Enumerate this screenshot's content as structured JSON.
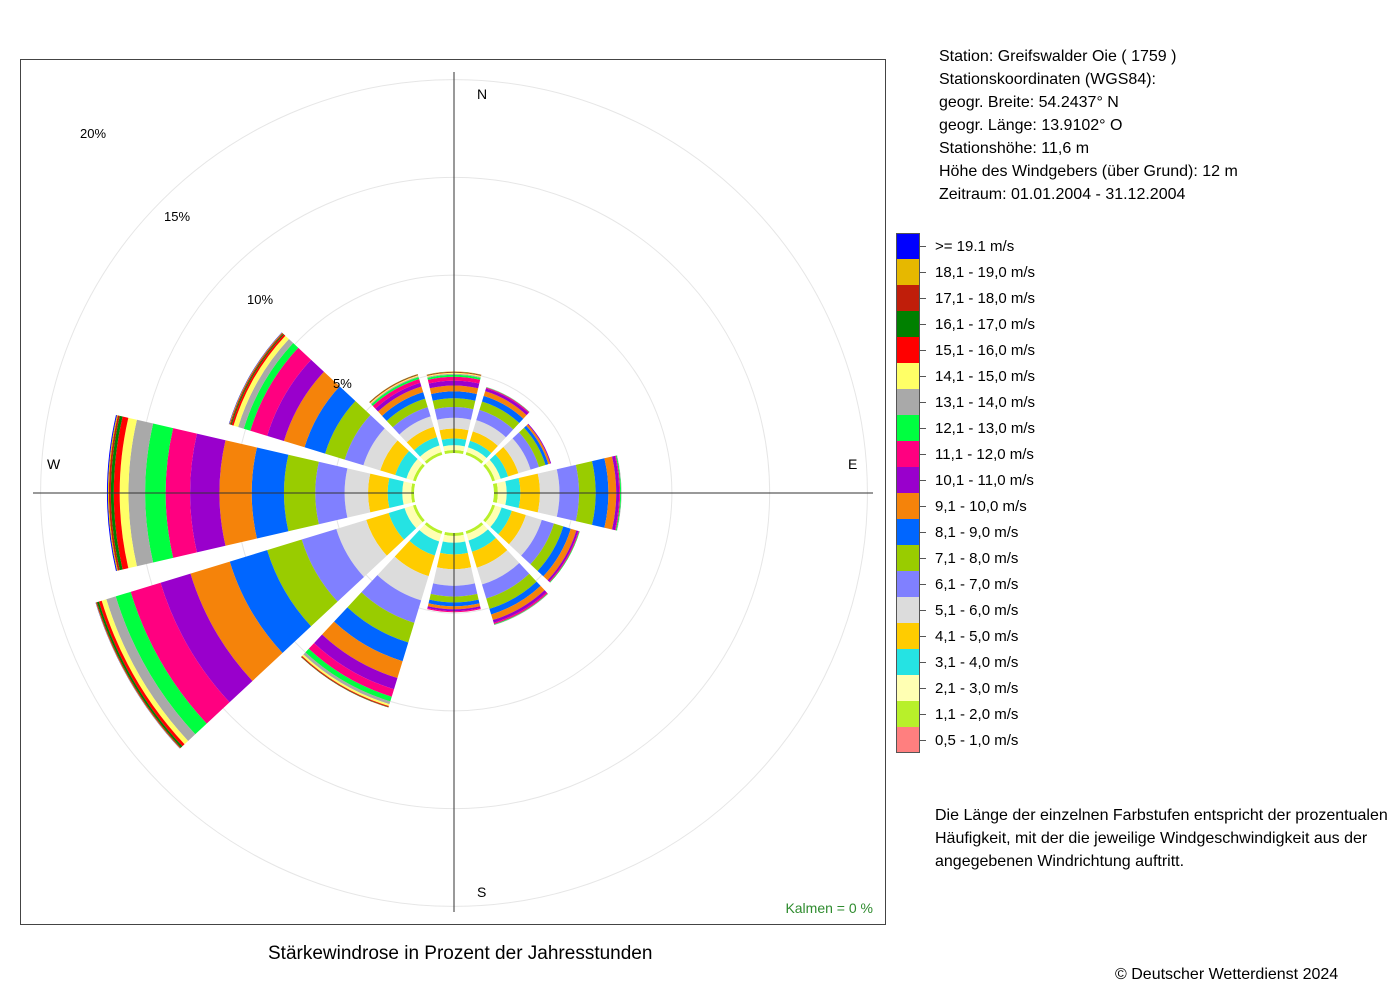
{
  "station": {
    "line1": "Station:  Greifswalder Oie  ( 1759 )",
    "line2": "Stationskoordinaten (WGS84):",
    "line3": "geogr. Breite: 54.2437° N",
    "line4": "geogr. Länge: 13.9102° O",
    "line5": "Stationshöhe: 11,6 m",
    "line6": "Höhe des Windgebers (über Grund): 12 m",
    "line7": "Zeitraum: 01.01.2004 - 31.12.2004"
  },
  "compass": {
    "n": "N",
    "e": "E",
    "s": "S",
    "w": "W"
  },
  "calm": {
    "label": "Kalmen  =  0 %"
  },
  "caption": "Stärkewindrose in Prozent der Jahresstunden",
  "description": {
    "line1": "Die Länge der einzelnen Farbstufen entspricht der prozentualen",
    "line2": "Häufigkeit, mit der die jeweilige Windgeschwindigkeit aus der",
    "line3": "angegebenen Windrichtung auftritt."
  },
  "copyright": "© Deutscher Wetterdienst  2024",
  "chart_data": {
    "type": "polar-stacked-bar",
    "title": "Stärkewindrose in Prozent der Jahresstunden",
    "ring_labels": [
      "5%",
      "10%",
      "15%",
      "20%"
    ],
    "ring_values": [
      5,
      10,
      15,
      20
    ],
    "inner_offset_percent": 0.9,
    "directions_deg": [
      0,
      30,
      60,
      90,
      120,
      150,
      180,
      210,
      240,
      270,
      300,
      330
    ],
    "classes": [
      {
        "label": "0,5 - 1,0 m/s",
        "color": "#ff7f7f"
      },
      {
        "label": "1,1 - 2,0 m/s",
        "color": "#b8f02a"
      },
      {
        "label": "2,1 - 3,0 m/s",
        "color": "#ffffb3"
      },
      {
        "label": "3,1 - 4,0 m/s",
        "color": "#25e3e3"
      },
      {
        "label": "4,1 - 5,0 m/s",
        "color": "#ffcc00"
      },
      {
        "label": "5,1 - 6,0 m/s",
        "color": "#dcdcdc"
      },
      {
        "label": "6,1 - 7,0 m/s",
        "color": "#8080ff"
      },
      {
        "label": "7,1 - 8,0 m/s",
        "color": "#99cc00"
      },
      {
        "label": "8,1 - 9,0 m/s",
        "color": "#0066ff"
      },
      {
        "label": "9,1 - 10,0 m/s",
        "color": "#f5830a"
      },
      {
        "label": "10,1 - 11,0 m/s",
        "color": "#9900cc"
      },
      {
        "label": "11,1 - 12,0 m/s",
        "color": "#ff0080"
      },
      {
        "label": "12,1 - 13,0 m/s",
        "color": "#00ff40"
      },
      {
        "label": "13,1 - 14,0 m/s",
        "color": "#a9a9a9"
      },
      {
        "label": "14,1 - 15,0 m/s",
        "color": "#ffff66"
      },
      {
        "label": "15,1 - 16,0 m/s",
        "color": "#ff0000"
      },
      {
        "label": "16,1 - 17,0 m/s",
        "color": "#008000"
      },
      {
        "label": "17,1 - 18,0 m/s",
        "color": "#c01e0a"
      },
      {
        "label": "18,1 - 19,0 m/s",
        "color": "#e6b800"
      },
      {
        "label": ">= 19.1 m/s",
        "color": "#0000ff"
      }
    ],
    "series": [
      {
        "direction": "N",
        "deg": 0,
        "values": [
          0.0,
          0.15,
          0.25,
          0.35,
          0.5,
          0.55,
          0.55,
          0.45,
          0.35,
          0.3,
          0.25,
          0.2,
          0.1,
          0.05,
          0.05,
          0.03,
          0.02,
          0.01,
          0.01,
          0.0
        ]
      },
      {
        "direction": "30°",
        "deg": 30,
        "values": [
          0.0,
          0.15,
          0.25,
          0.35,
          0.5,
          0.6,
          0.55,
          0.45,
          0.3,
          0.25,
          0.15,
          0.05,
          0.02,
          0.01,
          0.0,
          0.0,
          0.0,
          0.0,
          0.0,
          0.0
        ]
      },
      {
        "direction": "60°",
        "deg": 60,
        "values": [
          0.0,
          0.15,
          0.3,
          0.4,
          0.55,
          0.65,
          0.45,
          0.35,
          0.15,
          0.1,
          0.05,
          0.0,
          0.0,
          0.0,
          0.0,
          0.0,
          0.0,
          0.0,
          0.0,
          0.0
        ]
      },
      {
        "direction": "E",
        "deg": 90,
        "values": [
          0.0,
          0.2,
          0.45,
          0.7,
          1.0,
          1.0,
          1.0,
          0.85,
          0.65,
          0.4,
          0.15,
          0.05,
          0.05,
          0.02,
          0.0,
          0.0,
          0.0,
          0.0,
          0.0,
          0.0
        ]
      },
      {
        "direction": "120°",
        "deg": 120,
        "values": [
          0.0,
          0.15,
          0.35,
          0.55,
          0.75,
          0.85,
          0.65,
          0.5,
          0.4,
          0.3,
          0.1,
          0.05,
          0.03,
          0.0,
          0.0,
          0.0,
          0.0,
          0.0,
          0.0,
          0.0
        ]
      },
      {
        "direction": "150°",
        "deg": 150,
        "values": [
          0.0,
          0.15,
          0.35,
          0.6,
          0.85,
          0.9,
          0.75,
          0.55,
          0.3,
          0.3,
          0.15,
          0.07,
          0.03,
          0.02,
          0.0,
          0.0,
          0.0,
          0.0,
          0.0,
          0.0
        ]
      },
      {
        "direction": "S",
        "deg": 180,
        "values": [
          0.0,
          0.15,
          0.35,
          0.6,
          0.75,
          0.85,
          0.55,
          0.3,
          0.2,
          0.15,
          0.1,
          0.05,
          0.0,
          0.0,
          0.0,
          0.0,
          0.0,
          0.0,
          0.0,
          0.0
        ]
      },
      {
        "direction": "210°",
        "deg": 210,
        "values": [
          0.0,
          0.15,
          0.4,
          0.75,
          1.1,
          1.3,
          1.2,
          1.05,
          1.0,
          0.9,
          0.6,
          0.4,
          0.25,
          0.15,
          0.1,
          0.05,
          0.02,
          0.01,
          0.0,
          0.0
        ]
      },
      {
        "direction": "240°",
        "deg": 240,
        "values": [
          0.0,
          0.15,
          0.45,
          0.85,
          1.2,
          1.6,
          1.85,
          1.85,
          2.0,
          2.1,
          1.6,
          1.6,
          0.8,
          0.5,
          0.25,
          0.15,
          0.1,
          0.05,
          0.02,
          0.01
        ]
      },
      {
        "direction": "W",
        "deg": 270,
        "values": [
          0.0,
          0.15,
          0.45,
          0.75,
          1.0,
          1.2,
          1.5,
          1.6,
          1.65,
          1.65,
          1.5,
          1.25,
          1.05,
          0.85,
          0.45,
          0.3,
          0.15,
          0.1,
          0.05,
          0.05
        ]
      },
      {
        "direction": "300°",
        "deg": 300,
        "values": [
          0.0,
          0.15,
          0.35,
          0.6,
          0.8,
          0.9,
          1.0,
          1.05,
          1.1,
          1.1,
          0.9,
          0.9,
          0.35,
          0.3,
          0.25,
          0.1,
          0.05,
          0.05,
          0.03,
          0.02
        ]
      },
      {
        "direction": "330°",
        "deg": 330,
        "values": [
          0.0,
          0.15,
          0.35,
          0.45,
          0.55,
          0.55,
          0.5,
          0.45,
          0.35,
          0.3,
          0.2,
          0.2,
          0.1,
          0.05,
          0.05,
          0.03,
          0.02,
          0.01,
          0.01,
          0.0
        ]
      }
    ]
  }
}
